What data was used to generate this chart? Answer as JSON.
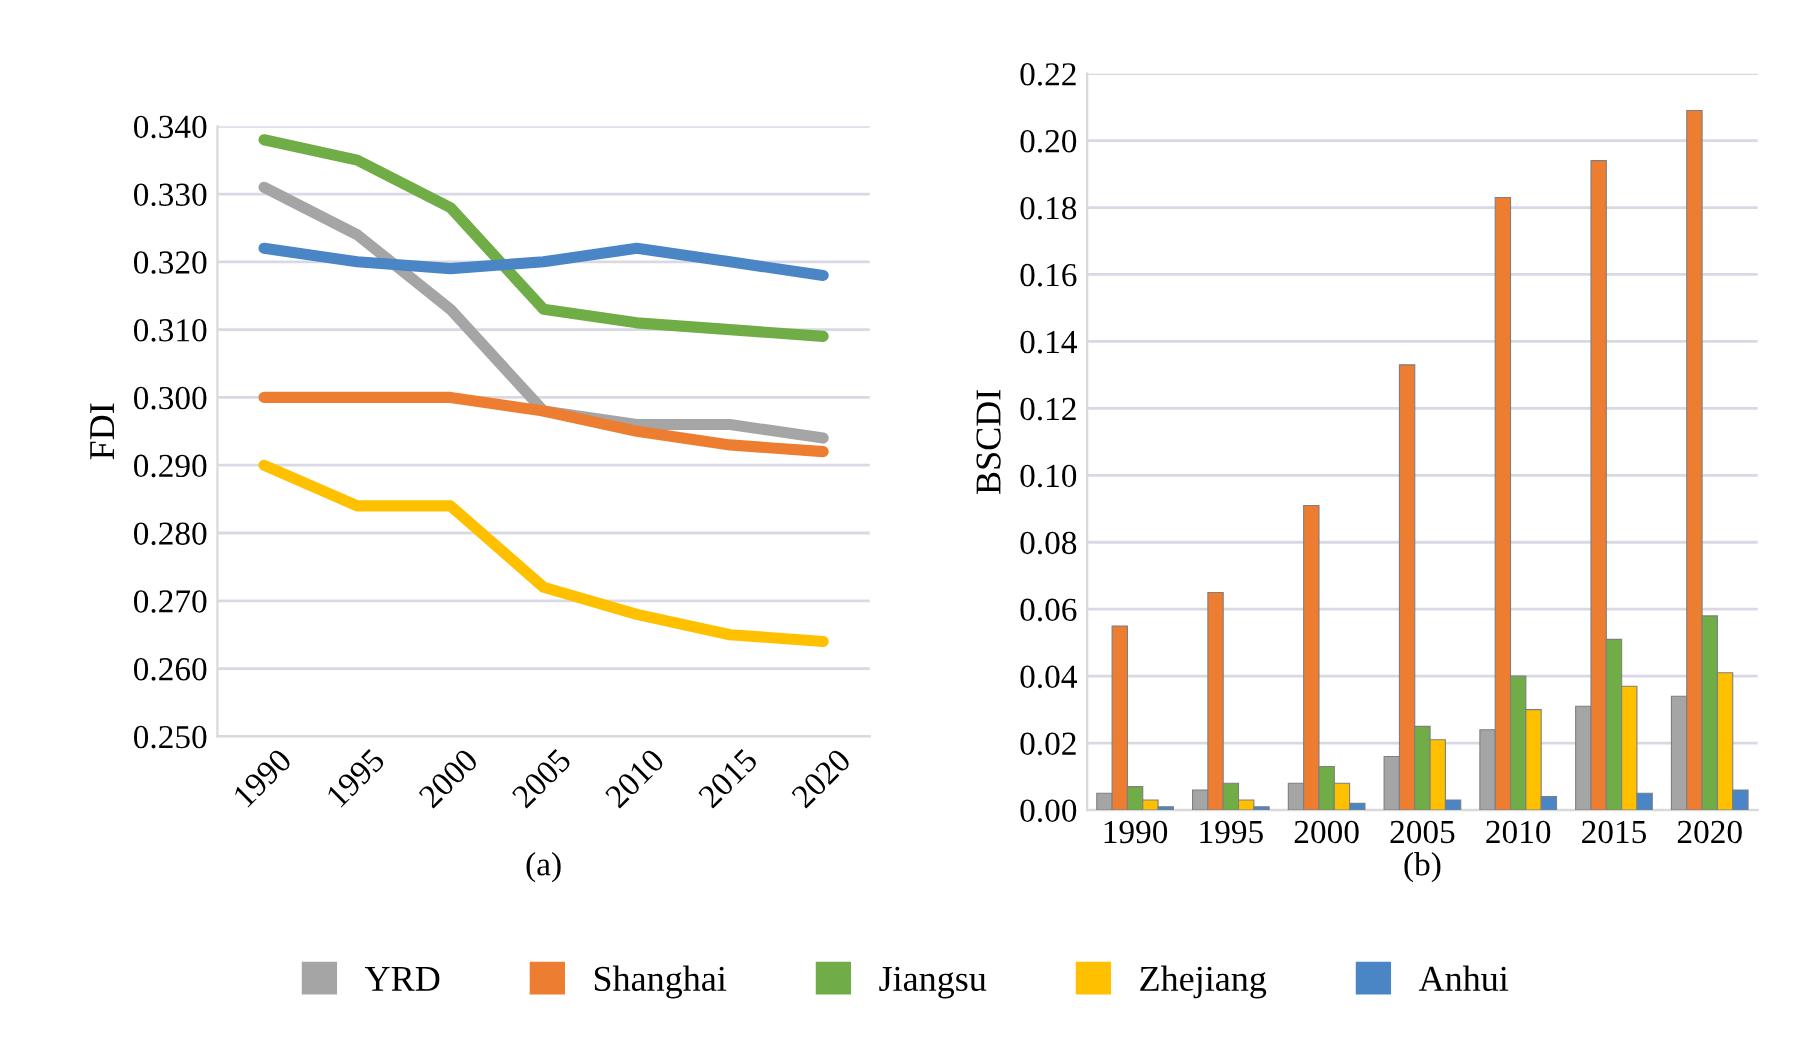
{
  "chart_data": [
    {
      "type": "line",
      "ylabel": "FDI",
      "annotations": [
        "(a)"
      ],
      "categories": [
        "1990",
        "1995",
        "2000",
        "2005",
        "2010",
        "2015",
        "2020"
      ],
      "series": [
        {
          "name": "YRD",
          "color": "#a5a5a5",
          "values": [
            0.331,
            0.324,
            0.313,
            0.298,
            0.296,
            0.296,
            0.294
          ]
        },
        {
          "name": "Shanghai",
          "color": "#ed7d31",
          "values": [
            0.3,
            0.3,
            0.3,
            0.298,
            0.295,
            0.293,
            0.292
          ]
        },
        {
          "name": "Jiangsu",
          "color": "#70ad47",
          "values": [
            0.338,
            0.335,
            0.328,
            0.313,
            0.311,
            0.31,
            0.309
          ]
        },
        {
          "name": "Zhejiang",
          "color": "#ffc000",
          "values": [
            0.29,
            0.284,
            0.284,
            0.272,
            0.268,
            0.265,
            0.264
          ]
        },
        {
          "name": "Anhui",
          "color": "#4a86c5",
          "values": [
            0.322,
            0.32,
            0.319,
            0.32,
            0.322,
            0.32,
            0.318
          ]
        }
      ],
      "ylim": [
        0.25,
        0.34
      ],
      "yticks": [
        {
          "value": 0.25,
          "label": "0.250"
        },
        {
          "value": 0.26,
          "label": "0.260"
        },
        {
          "value": 0.27,
          "label": "0.270"
        },
        {
          "value": 0.28,
          "label": "0.280"
        },
        {
          "value": 0.29,
          "label": "0.290"
        },
        {
          "value": 0.3,
          "label": "0.300"
        },
        {
          "value": 0.31,
          "label": "0.310"
        },
        {
          "value": 0.32,
          "label": "0.320"
        },
        {
          "value": 0.33,
          "label": "0.330"
        },
        {
          "value": 0.34,
          "label": "0.340"
        }
      ],
      "grid": "y",
      "legend": "bottom",
      "marker": "none"
    },
    {
      "type": "bar",
      "ylabel": "BSCDI",
      "annotations": [
        "(b)"
      ],
      "categories": [
        "1990",
        "1995",
        "2000",
        "2005",
        "2010",
        "2015",
        "2020"
      ],
      "series": [
        {
          "color": "#a5a5a5",
          "values": [
            0.005,
            0.006,
            0.008,
            0.016,
            0.024,
            0.031,
            0.034
          ]
        },
        {
          "color": "#ed7d31",
          "values": [
            0.055,
            0.065,
            0.091,
            0.133,
            0.183,
            0.194,
            0.209
          ]
        },
        {
          "color": "#70ad47",
          "values": [
            0.007,
            0.008,
            0.013,
            0.025,
            0.04,
            0.051,
            0.058
          ]
        },
        {
          "color": "#ffc000",
          "values": [
            0.003,
            0.003,
            0.008,
            0.021,
            0.03,
            0.037,
            0.041
          ]
        },
        {
          "color": "#4a86c5",
          "values": [
            0.001,
            0.001,
            0.002,
            0.003,
            0.004,
            0.005,
            0.006
          ]
        }
      ],
      "ylim": [
        0,
        0.22
      ],
      "yticks": [
        {
          "value": 0,
          "label": "0.00"
        },
        {
          "value": 0.02,
          "label": "0.02"
        },
        {
          "value": 0.04,
          "label": "0.04"
        },
        {
          "value": 0.06,
          "label": "0.06"
        },
        {
          "value": 0.08,
          "label": "0.08"
        },
        {
          "value": 0.1,
          "label": "0.10"
        },
        {
          "value": 0.12,
          "label": "0.12"
        },
        {
          "value": 0.14,
          "label": "0.14"
        },
        {
          "value": 0.16,
          "label": "0.16"
        },
        {
          "value": 0.18,
          "label": "0.18"
        },
        {
          "value": 0.2,
          "label": "0.20"
        },
        {
          "value": 0.22,
          "label": "0.22"
        }
      ],
      "grid": "y"
    }
  ]
}
